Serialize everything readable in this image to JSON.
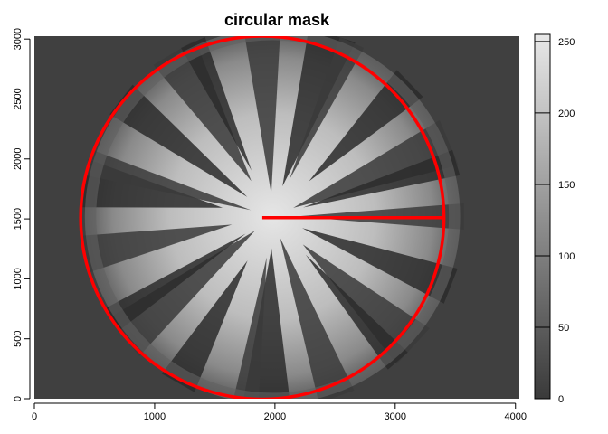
{
  "chart_data": {
    "type": "heatmap",
    "title": "circular mask",
    "xlabel": "",
    "ylabel": "",
    "xlim": [
      0,
      4032
    ],
    "ylim": [
      0,
      3024
    ],
    "x_ticks": [
      0,
      1000,
      2000,
      3000,
      4000
    ],
    "y_ticks": [
      0,
      500,
      1000,
      1500,
      2000,
      2500,
      3000
    ],
    "colorbar": {
      "range": [
        0,
        255
      ],
      "ticks": [
        0,
        50,
        100,
        150,
        200,
        250
      ],
      "low_color": "#3a3a3a",
      "high_color": "#e8e8e8"
    },
    "image": {
      "description_free_background_color": "#404040",
      "fisheye_center": [
        1980,
        1520
      ],
      "fisheye_radius": 1560
    },
    "mask_overlay": {
      "color": "#ff0000",
      "circle_center": [
        1895,
        1510
      ],
      "circle_radius": 1510,
      "radius_line": {
        "from": [
          1895,
          1510
        ],
        "to": [
          3405,
          1510
        ]
      }
    }
  }
}
